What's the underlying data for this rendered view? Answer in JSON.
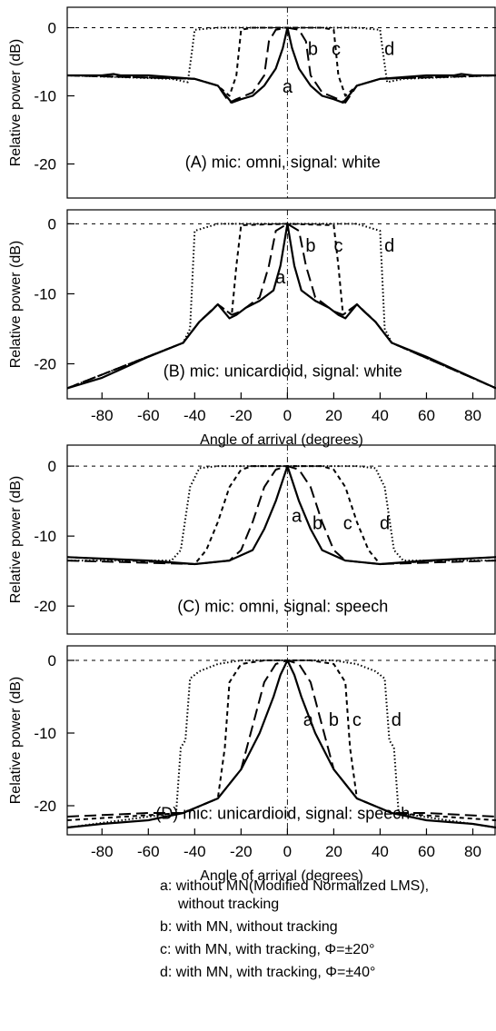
{
  "chart_data": [
    {
      "type": "line",
      "panel_label": "(A) mic: omni, signal: white",
      "ylabel": "Relative power (dB)",
      "xlabel": "",
      "xlim": [
        -95,
        90
      ],
      "ylim": [
        -25,
        3
      ],
      "y_ticks": [
        "0",
        "-10",
        "-20"
      ],
      "x_ticks": [],
      "curve_labels": [
        "a",
        "b",
        "c",
        "d"
      ],
      "series": [
        {
          "name": "a",
          "x": [
            -95,
            -80,
            -75,
            -72,
            -60,
            -40,
            -30,
            -24,
            -20,
            -15,
            -10,
            -5,
            -2,
            0,
            2,
            5,
            10,
            15,
            20,
            24,
            30,
            40,
            60,
            72,
            75,
            80,
            90
          ],
          "y": [
            -7,
            -7,
            -6.8,
            -7,
            -7,
            -7.5,
            -8.5,
            -11,
            -10.5,
            -10,
            -8.5,
            -6,
            -3,
            0,
            -3,
            -6,
            -8.5,
            -10,
            -10.5,
            -11,
            -8.5,
            -7.5,
            -7,
            -7,
            -6.8,
            -7,
            -7
          ]
        },
        {
          "name": "b",
          "x": [
            -95,
            -40,
            -30,
            -25,
            -22,
            -15,
            -10,
            -8,
            -5,
            0,
            5,
            8,
            10,
            15,
            22,
            25,
            30,
            40,
            90
          ],
          "y": [
            -7,
            -7.5,
            -8.5,
            -11,
            -10.5,
            -9.5,
            -7,
            -2,
            -0.3,
            0,
            -0.3,
            -2,
            -7,
            -9.5,
            -10.5,
            -11,
            -8.5,
            -7.5,
            -7
          ]
        },
        {
          "name": "c",
          "x": [
            -95,
            -40,
            -30,
            -25,
            -22,
            -20,
            -15,
            0,
            15,
            20,
            22,
            25,
            30,
            40,
            90
          ],
          "y": [
            -7,
            -7.5,
            -8.5,
            -10,
            -7,
            -0.3,
            0,
            0,
            0,
            -0.3,
            -7,
            -10,
            -8.5,
            -7.5,
            -7
          ]
        },
        {
          "name": "d",
          "x": [
            -95,
            -50,
            -43,
            -41,
            -40,
            -30,
            0,
            30,
            40,
            41,
            43,
            50,
            90
          ],
          "y": [
            -7,
            -7.5,
            -8,
            -3,
            -0.3,
            0,
            0,
            0,
            -0.3,
            -3,
            -8,
            -7.5,
            -7
          ]
        }
      ]
    },
    {
      "type": "line",
      "panel_label": "(B) mic: unicardioid, signal: white",
      "ylabel": "Relative power (dB)",
      "xlabel": "Angle of arrival (degrees)",
      "xlim": [
        -95,
        90
      ],
      "ylim": [
        -25,
        2
      ],
      "y_ticks": [
        "0",
        "-10",
        "-20"
      ],
      "x_ticks": [
        "-80",
        "-60",
        "-40",
        "-20",
        "0",
        "20",
        "40",
        "60",
        "80"
      ],
      "curve_labels": [
        "a",
        "b",
        "c",
        "d"
      ],
      "series": [
        {
          "name": "a",
          "x": [
            -95,
            -80,
            -60,
            -45,
            -38,
            -33,
            -30,
            -25,
            -22,
            -18,
            -12,
            -6,
            -3,
            0,
            3,
            6,
            12,
            18,
            22,
            25,
            30,
            33,
            38,
            45,
            60,
            80,
            90
          ],
          "y": [
            -23.5,
            -22,
            -19,
            -17,
            -14,
            -12.5,
            -11.5,
            -13.5,
            -13,
            -12,
            -11,
            -9.5,
            -6,
            0,
            -6,
            -9.5,
            -11,
            -12,
            -13,
            -13.5,
            -11.5,
            -12.5,
            -14,
            -17,
            -19,
            -22,
            -23.5
          ]
        },
        {
          "name": "b",
          "x": [
            -95,
            -45,
            -38,
            -30,
            -24,
            -20,
            -12,
            -8,
            -5,
            0,
            5,
            8,
            12,
            20,
            24,
            30,
            38,
            45,
            90
          ],
          "y": [
            -23.5,
            -17,
            -14,
            -11.5,
            -13,
            -12.5,
            -10.5,
            -6,
            -1,
            0,
            -1,
            -6,
            -10.5,
            -12.5,
            -13,
            -11.5,
            -14,
            -17,
            -23.5
          ]
        },
        {
          "name": "c",
          "x": [
            -95,
            -45,
            -38,
            -30,
            -24,
            -22,
            -20,
            0,
            20,
            22,
            24,
            30,
            38,
            45,
            90
          ],
          "y": [
            -23.5,
            -17,
            -14,
            -11.5,
            -13,
            -6,
            -0.2,
            0,
            -0.2,
            -6,
            -13,
            -11.5,
            -14,
            -17,
            -23.5
          ]
        },
        {
          "name": "d",
          "x": [
            -95,
            -45,
            -42,
            -40,
            -30,
            0,
            30,
            40,
            42,
            45,
            90
          ],
          "y": [
            -23.5,
            -17,
            -15,
            -1,
            0,
            0,
            0,
            -1,
            -15,
            -17,
            -23.5
          ]
        }
      ]
    },
    {
      "type": "line",
      "panel_label": "(C) mic: omni, signal: speech",
      "ylabel": "Relative power (dB)",
      "xlabel": "",
      "xlim": [
        -95,
        90
      ],
      "ylim": [
        -24,
        3
      ],
      "y_ticks": [
        "0",
        "-10",
        "-20"
      ],
      "x_ticks": [],
      "curve_labels": [
        "a",
        "b",
        "c",
        "d"
      ],
      "series": [
        {
          "name": "a",
          "x": [
            -95,
            -60,
            -40,
            -25,
            -15,
            -10,
            -5,
            -2,
            0,
            2,
            5,
            10,
            15,
            25,
            40,
            60,
            90
          ],
          "y": [
            -13,
            -13.5,
            -14,
            -13.5,
            -12,
            -9,
            -5,
            -2,
            0,
            -2,
            -5,
            -9,
            -12,
            -13.5,
            -14,
            -13.5,
            -13
          ]
        },
        {
          "name": "b",
          "x": [
            -95,
            -40,
            -25,
            -20,
            -15,
            -10,
            -5,
            0,
            5,
            10,
            15,
            20,
            25,
            40,
            90
          ],
          "y": [
            -13.5,
            -14,
            -13.5,
            -12,
            -8,
            -3,
            -0.5,
            0,
            -0.5,
            -3,
            -8,
            -12,
            -13.5,
            -14,
            -13.5
          ]
        },
        {
          "name": "c",
          "x": [
            -95,
            -40,
            -35,
            -30,
            -25,
            -20,
            -15,
            0,
            15,
            20,
            25,
            30,
            35,
            40,
            90
          ],
          "y": [
            -13,
            -14,
            -12,
            -8,
            -3,
            -0.5,
            0,
            0,
            0,
            -0.5,
            -3,
            -8,
            -12,
            -14,
            -13
          ]
        },
        {
          "name": "d",
          "x": [
            -95,
            -50,
            -46,
            -42,
            -38,
            -30,
            0,
            30,
            38,
            42,
            46,
            50,
            90
          ],
          "y": [
            -13.5,
            -13.5,
            -12,
            -3,
            -0.3,
            0,
            0,
            0,
            -0.3,
            -3,
            -12,
            -13.5,
            -13.5
          ]
        }
      ]
    },
    {
      "type": "line",
      "panel_label": "(D) mic: unicardioid, signal: speech",
      "ylabel": "Relative power (dB)",
      "xlabel": "Angle of arrival (degrees)",
      "xlim": [
        -95,
        90
      ],
      "ylim": [
        -24,
        2
      ],
      "y_ticks": [
        "0",
        "-10",
        "-20"
      ],
      "x_ticks": [
        "-80",
        "-60",
        "-40",
        "-20",
        "0",
        "20",
        "40",
        "60",
        "80"
      ],
      "curve_labels": [
        "a",
        "b",
        "c",
        "d"
      ],
      "series": [
        {
          "name": "a",
          "x": [
            -95,
            -80,
            -60,
            -45,
            -30,
            -20,
            -12,
            -6,
            -3,
            0,
            3,
            6,
            12,
            20,
            30,
            45,
            60,
            80,
            90
          ],
          "y": [
            -23,
            -22.5,
            -22,
            -21,
            -19,
            -15,
            -10,
            -5,
            -2,
            0,
            -2,
            -5,
            -10,
            -15,
            -19,
            -21,
            -22,
            -22.5,
            -23
          ]
        },
        {
          "name": "b",
          "x": [
            -95,
            -60,
            -45,
            -30,
            -20,
            -15,
            -10,
            -5,
            0,
            5,
            10,
            15,
            20,
            30,
            45,
            60,
            90
          ],
          "y": [
            -21.5,
            -21,
            -21,
            -19,
            -15,
            -9,
            -3,
            -0.5,
            0,
            -0.5,
            -3,
            -9,
            -15,
            -19,
            -21,
            -21,
            -21.5
          ]
        },
        {
          "name": "c",
          "x": [
            -95,
            -45,
            -30,
            -27,
            -25,
            -20,
            -10,
            0,
            10,
            20,
            25,
            27,
            30,
            45,
            90
          ],
          "y": [
            -22,
            -21,
            -19,
            -12,
            -3,
            -0.5,
            0,
            0,
            0,
            -0.5,
            -3,
            -12,
            -19,
            -21,
            -22
          ]
        },
        {
          "name": "d",
          "x": [
            -95,
            -48,
            -46,
            -44,
            -42,
            -38,
            -30,
            -20,
            0,
            20,
            30,
            38,
            42,
            44,
            46,
            48,
            90
          ],
          "y": [
            -23,
            -21,
            -12,
            -11,
            -2.5,
            -1.5,
            -0.5,
            0,
            0,
            0,
            -0.5,
            -1.5,
            -2.5,
            -11,
            -12,
            -21,
            -23
          ]
        }
      ]
    }
  ],
  "legend": {
    "a_line1": "a: without MN(Modified Normalized LMS),",
    "a_line2": "without tracking",
    "b": "b: with MN, without tracking",
    "c": "c: with MN, with tracking, Φ=±20°",
    "d": "d: with MN, with tracking, Φ=±40°"
  }
}
